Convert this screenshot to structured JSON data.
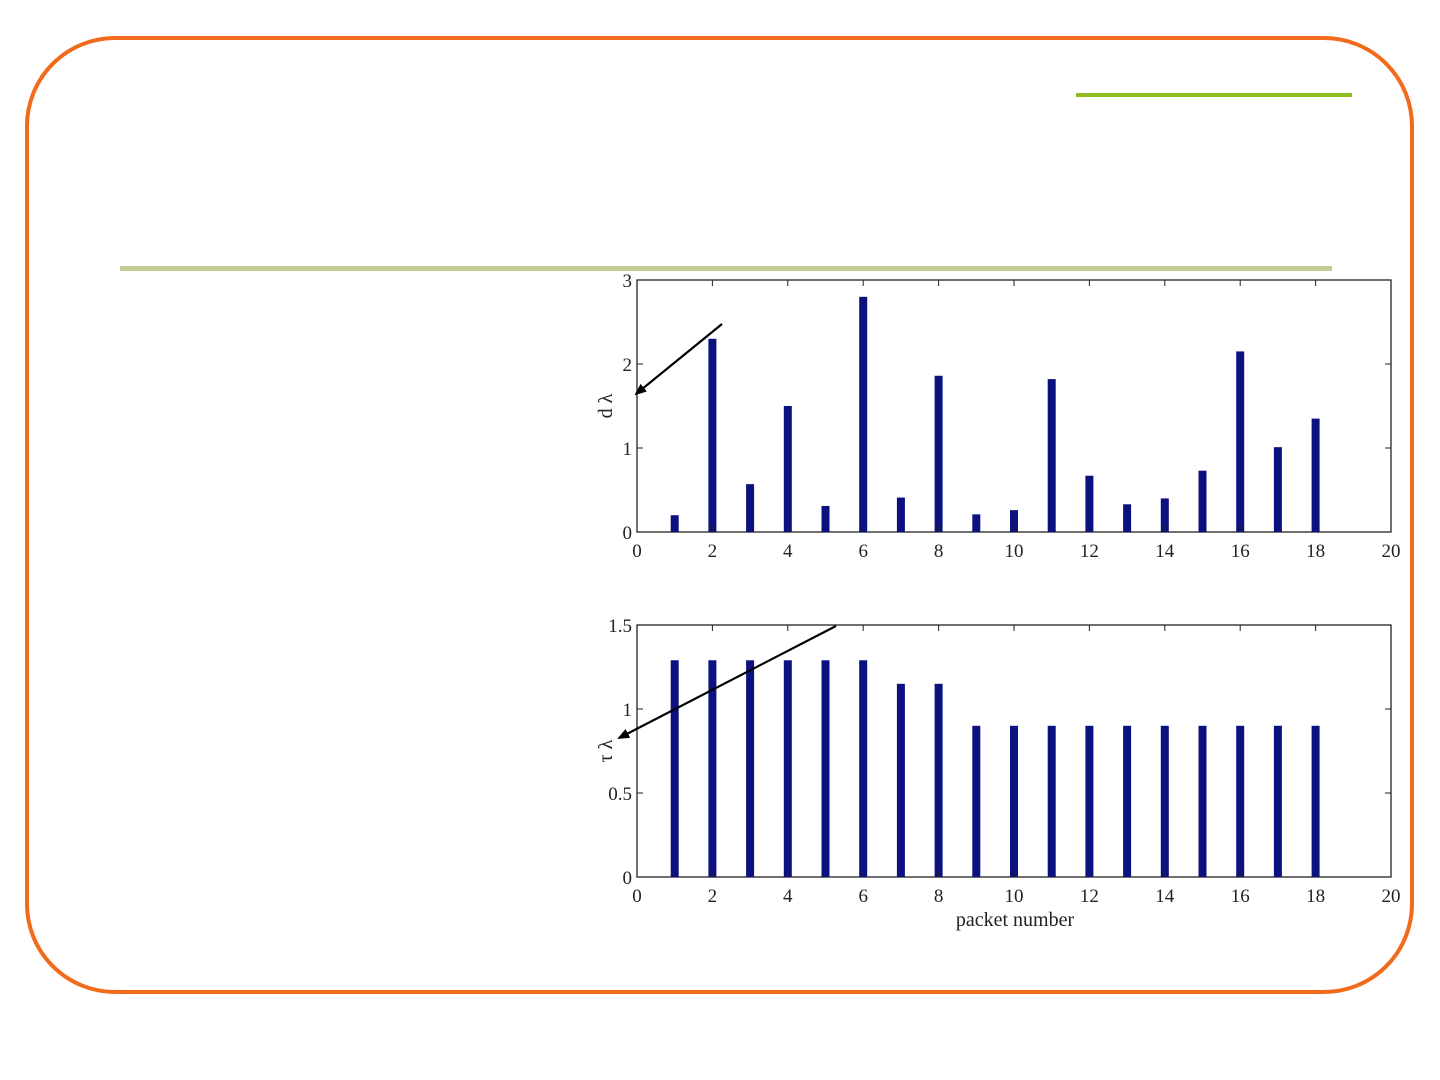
{
  "colors": {
    "frame": "#f26a1b",
    "accent_line": "#8fbc1e",
    "title_rule": "#c5cc95",
    "bar": "#0c1180",
    "axis": "#222222",
    "arrow": "#000000"
  },
  "chart_data": [
    {
      "type": "bar",
      "ylabel": "d λ",
      "xlabel": "",
      "x": [
        1,
        2,
        3,
        4,
        5,
        6,
        7,
        8,
        9,
        10,
        11,
        12,
        13,
        14,
        15,
        16,
        17,
        18
      ],
      "values": [
        0.2,
        2.3,
        0.57,
        1.5,
        0.31,
        2.8,
        0.41,
        1.86,
        0.21,
        0.26,
        1.82,
        0.67,
        0.33,
        0.4,
        0.73,
        2.15,
        1.01,
        1.35
      ],
      "xlim": [
        0,
        20
      ],
      "ylim": [
        0,
        3
      ],
      "xticks": [
        "0",
        "2",
        "4",
        "6",
        "8",
        "10",
        "12",
        "14",
        "16",
        "18",
        "20"
      ],
      "yticks": [
        "0",
        "1",
        "2",
        "3"
      ],
      "grid": false
    },
    {
      "type": "bar",
      "ylabel": "τ λ",
      "xlabel": "packet number",
      "x": [
        1,
        2,
        3,
        4,
        5,
        6,
        7,
        8,
        9,
        10,
        11,
        12,
        13,
        14,
        15,
        16,
        17,
        18
      ],
      "values": [
        1.29,
        1.29,
        1.29,
        1.29,
        1.29,
        1.29,
        1.15,
        1.15,
        0.9,
        0.9,
        0.9,
        0.9,
        0.9,
        0.9,
        0.9,
        0.9,
        0.9,
        0.9
      ],
      "xlim": [
        0,
        20
      ],
      "ylim": [
        0,
        1.5
      ],
      "xticks": [
        "0",
        "2",
        "4",
        "6",
        "8",
        "10",
        "12",
        "14",
        "16",
        "18",
        "20"
      ],
      "yticks": [
        "0",
        "0.5",
        "1",
        "1.5"
      ],
      "grid": false
    }
  ]
}
